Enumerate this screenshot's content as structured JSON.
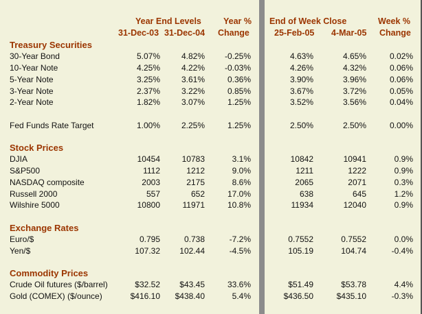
{
  "headers": {
    "year_end_levels": "Year End Levels",
    "dec03": "31-Dec-03",
    "dec04": "31-Dec-04",
    "year_pct": "Year %",
    "year_change": "Change",
    "end_of_week_close": "End of Week Close",
    "feb25": "25-Feb-05",
    "mar4": "4-Mar-05",
    "week_pct": "Week %",
    "week_change": "Change"
  },
  "sections": {
    "treasury": "Treasury Securities",
    "stocks": "Stock Prices",
    "exchange": "Exchange Rates",
    "commodity": "Commodity Prices"
  },
  "rows": [
    [
      "30-Year Bond",
      "5.07%",
      "4.82%",
      "-0.25%",
      "4.63%",
      "4.65%",
      "0.02%"
    ],
    [
      "10-Year Note",
      "4.25%",
      "4.22%",
      "-0.03%",
      "4.26%",
      "4.32%",
      "0.06%"
    ],
    [
      "5-Year Note",
      "3.25%",
      "3.61%",
      "0.36%",
      "3.90%",
      "3.96%",
      "0.06%"
    ],
    [
      "3-Year Note",
      "2.37%",
      "3.22%",
      "0.85%",
      "3.67%",
      "3.72%",
      "0.05%"
    ],
    [
      "2-Year Note",
      "1.82%",
      "3.07%",
      "1.25%",
      "3.52%",
      "3.56%",
      "0.04%"
    ],
    [
      "Fed Funds Rate Target",
      "1.00%",
      "2.25%",
      "1.25%",
      "2.50%",
      "2.50%",
      "0.00%"
    ],
    [
      "DJIA",
      "10454",
      "10783",
      "3.1%",
      "10842",
      "10941",
      "0.9%"
    ],
    [
      "S&P500",
      "1112",
      "1212",
      "9.0%",
      "1211",
      "1222",
      "0.9%"
    ],
    [
      "NASDAQ composite",
      "2003",
      "2175",
      "8.6%",
      "2065",
      "2071",
      "0.3%"
    ],
    [
      "Russell 2000",
      "557",
      "652",
      "17.0%",
      "638",
      "645",
      "1.2%"
    ],
    [
      "Wilshire 5000",
      "10800",
      "11971",
      "10.8%",
      "11934",
      "12040",
      "0.9%"
    ],
    [
      "Euro/$",
      "0.795",
      "0.738",
      "-7.2%",
      "0.7552",
      "0.7552",
      "0.0%"
    ],
    [
      "Yen/$",
      "107.32",
      "102.44",
      "-4.5%",
      "105.19",
      "104.74",
      "-0.4%"
    ],
    [
      "Crude Oil futures ($/barrel)",
      "$32.52",
      "$43.45",
      "33.6%",
      "$51.49",
      "$53.78",
      "4.4%"
    ],
    [
      "Gold (COMEX) ($/ounce)",
      "$416.10",
      "$438.40",
      "5.4%",
      "$436.50",
      "$435.10",
      "-0.3%"
    ]
  ]
}
